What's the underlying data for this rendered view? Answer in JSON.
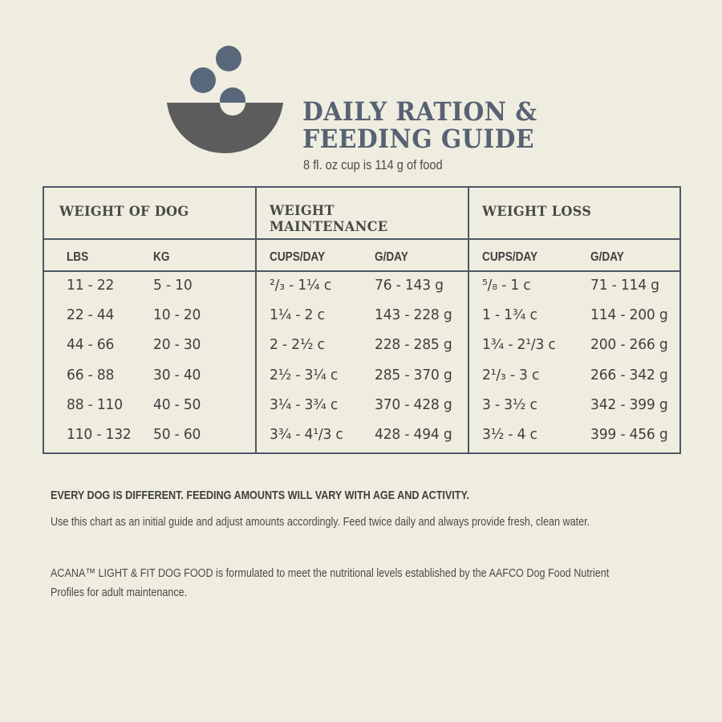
{
  "header": {
    "title_line1": "DAILY RATION &",
    "title_line2": "FEEDING GUIDE",
    "subtitle": "8 fl. oz cup is 114 g of food",
    "logo_icon": "bowl-with-kibble-icon",
    "colors": {
      "bowl": "#5c5c5c",
      "kibble": "#586779",
      "title": "#576273",
      "background": "#efede0",
      "border": "#4d5864"
    }
  },
  "table": {
    "groups": [
      {
        "label": "WEIGHT OF DOG",
        "columns": [
          "LBS",
          "KG"
        ]
      },
      {
        "label_line1": "WEIGHT",
        "label_line2": "MAINTENANCE",
        "columns": [
          "CUPS/DAY",
          "G/DAY"
        ]
      },
      {
        "label": "WEIGHT LOSS",
        "columns": [
          "CUPS/DAY",
          "G/DAY"
        ]
      }
    ],
    "rows": [
      [
        "11 - 22",
        "5 - 10",
        "²/₃ - 1¼ c",
        "76 - 143 g",
        "⁵/₈ - 1 c",
        "71 - 114 g"
      ],
      [
        "22 - 44",
        "10 - 20",
        "1¼ - 2 c",
        "143 - 228 g",
        "1 - 1¾ c",
        "114 - 200 g"
      ],
      [
        "44 - 66",
        "20 - 30",
        "2 - 2½ c",
        "228 - 285 g",
        "1¾ - 2¹/3 c",
        "200 - 266 g"
      ],
      [
        "66 - 88",
        "30 - 40",
        "2½ - 3¼ c",
        "285 - 370 g",
        "2¹/₃ - 3 c",
        "266 - 342 g"
      ],
      [
        "88 - 110",
        "40 - 50",
        "3¼ - 3¾ c",
        "370 - 428 g",
        "3 - 3½ c",
        "342 - 399 g"
      ],
      [
        "110 - 132",
        "50 - 60",
        "3¾ - 4¹/3 c",
        "428 - 494 g",
        "3½ - 4 c",
        "399 - 456 g"
      ]
    ]
  },
  "notes": {
    "headline": "EVERY DOG IS DIFFERENT. FEEDING AMOUNTS WILL VARY WITH AGE AND ACTIVITY.",
    "guidance": "Use this chart as an initial guide and adjust amounts accordingly. Feed twice daily and always provide fresh, clean water.",
    "statement_line1": "ACANA™ LIGHT & FIT DOG FOOD is formulated to meet the nutritional levels established by the AAFCO Dog Food Nutrient",
    "statement_line2": "Profiles for adult maintenance."
  }
}
